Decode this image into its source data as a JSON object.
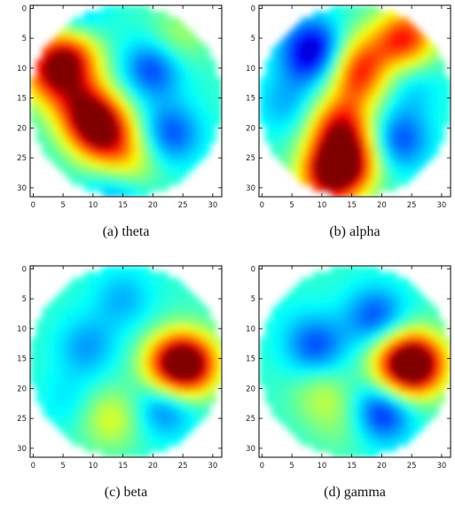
{
  "figure": {
    "panels": [
      {
        "caption": "(a)  theta"
      },
      {
        "caption": "(b)  alpha"
      },
      {
        "caption": "(c)  beta"
      },
      {
        "caption": "(d)  gamma"
      }
    ]
  },
  "chart_data": [
    {
      "type": "heatmap",
      "caption": "(a)  theta",
      "x_ticks": [
        "0",
        "5",
        "10",
        "15",
        "20",
        "25",
        "30"
      ],
      "y_ticks": [
        "0",
        "5",
        "10",
        "15",
        "20",
        "25",
        "30"
      ],
      "xlim": [
        -0.5,
        31.5
      ],
      "ylim": [
        31.5,
        -0.5
      ],
      "grid_size": [
        32,
        32
      ],
      "colormap": "jet",
      "mask": "circle",
      "blobs": [
        {
          "x": 6,
          "y": 8,
          "value": 0.85
        },
        {
          "x": 3,
          "y": 11,
          "value": 0.78
        },
        {
          "x": 12,
          "y": 21,
          "value": 0.8
        },
        {
          "x": 8,
          "y": 16,
          "value": 0.7
        },
        {
          "x": 10,
          "y": 19,
          "value": 0.72
        },
        {
          "x": 16,
          "y": 26,
          "value": 0.62
        },
        {
          "x": 24,
          "y": 5,
          "value": 0.55
        },
        {
          "x": 20,
          "y": 10,
          "value": 0.18
        },
        {
          "x": 23,
          "y": 21,
          "value": 0.2
        },
        {
          "x": 14,
          "y": 31,
          "value": 0.25
        },
        {
          "x": 7,
          "y": 2,
          "value": 0.28
        }
      ]
    },
    {
      "type": "heatmap",
      "caption": "(b)  alpha",
      "x_ticks": [
        "0",
        "5",
        "10",
        "15",
        "20",
        "25",
        "30"
      ],
      "y_ticks": [
        "0",
        "5",
        "10",
        "15",
        "20",
        "25",
        "30"
      ],
      "xlim": [
        -0.5,
        31.5
      ],
      "ylim": [
        31.5,
        -0.5
      ],
      "grid_size": [
        32,
        32
      ],
      "colormap": "jet",
      "mask": "circle",
      "blobs": [
        {
          "x": 14,
          "y": 26,
          "value": 0.92
        },
        {
          "x": 13,
          "y": 20,
          "value": 0.85
        },
        {
          "x": 16,
          "y": 12,
          "value": 0.72
        },
        {
          "x": 17,
          "y": 8,
          "value": 0.62
        },
        {
          "x": 11,
          "y": 28,
          "value": 0.82
        },
        {
          "x": 24,
          "y": 5,
          "value": 0.85
        },
        {
          "x": 8,
          "y": 8,
          "value": 0.2
        },
        {
          "x": 9,
          "y": 6,
          "value": 0.26
        },
        {
          "x": 23,
          "y": 22,
          "value": 0.2
        },
        {
          "x": 4,
          "y": 16,
          "value": 0.3
        },
        {
          "x": 25,
          "y": 13,
          "value": 0.32
        }
      ]
    },
    {
      "type": "heatmap",
      "caption": "(c)  beta",
      "x_ticks": [
        "0",
        "5",
        "10",
        "15",
        "20",
        "25",
        "30"
      ],
      "y_ticks": [
        "0",
        "5",
        "10",
        "15",
        "20",
        "25",
        "30"
      ],
      "xlim": [
        -0.5,
        31.5
      ],
      "ylim": [
        31.5,
        -0.5
      ],
      "grid_size": [
        32,
        32
      ],
      "colormap": "jet",
      "mask": "circle",
      "blobs": [
        {
          "x": 26,
          "y": 16,
          "value": 0.95
        },
        {
          "x": 23,
          "y": 16,
          "value": 0.75
        },
        {
          "x": 13,
          "y": 25,
          "value": 0.6
        },
        {
          "x": 9,
          "y": 13,
          "value": 0.28
        },
        {
          "x": 22,
          "y": 23,
          "value": 0.22
        },
        {
          "x": 15,
          "y": 5,
          "value": 0.3
        },
        {
          "x": 6,
          "y": 22,
          "value": 0.35
        }
      ]
    },
    {
      "type": "heatmap",
      "caption": "(d)  gamma",
      "x_ticks": [
        "0",
        "5",
        "10",
        "15",
        "20",
        "25",
        "30"
      ],
      "y_ticks": [
        "0",
        "5",
        "10",
        "15",
        "20",
        "25",
        "30"
      ],
      "xlim": [
        -0.5,
        31.5
      ],
      "ylim": [
        31.5,
        -0.5
      ],
      "grid_size": [
        32,
        32
      ],
      "colormap": "jet",
      "mask": "circle",
      "blobs": [
        {
          "x": 26,
          "y": 16,
          "value": 0.95
        },
        {
          "x": 23,
          "y": 16,
          "value": 0.78
        },
        {
          "x": 9,
          "y": 13,
          "value": 0.2
        },
        {
          "x": 19,
          "y": 8,
          "value": 0.2
        },
        {
          "x": 20,
          "y": 24,
          "value": 0.14
        },
        {
          "x": 10,
          "y": 21,
          "value": 0.55
        },
        {
          "x": 14,
          "y": 26,
          "value": 0.5
        },
        {
          "x": 4,
          "y": 8,
          "value": 0.4
        }
      ]
    }
  ]
}
